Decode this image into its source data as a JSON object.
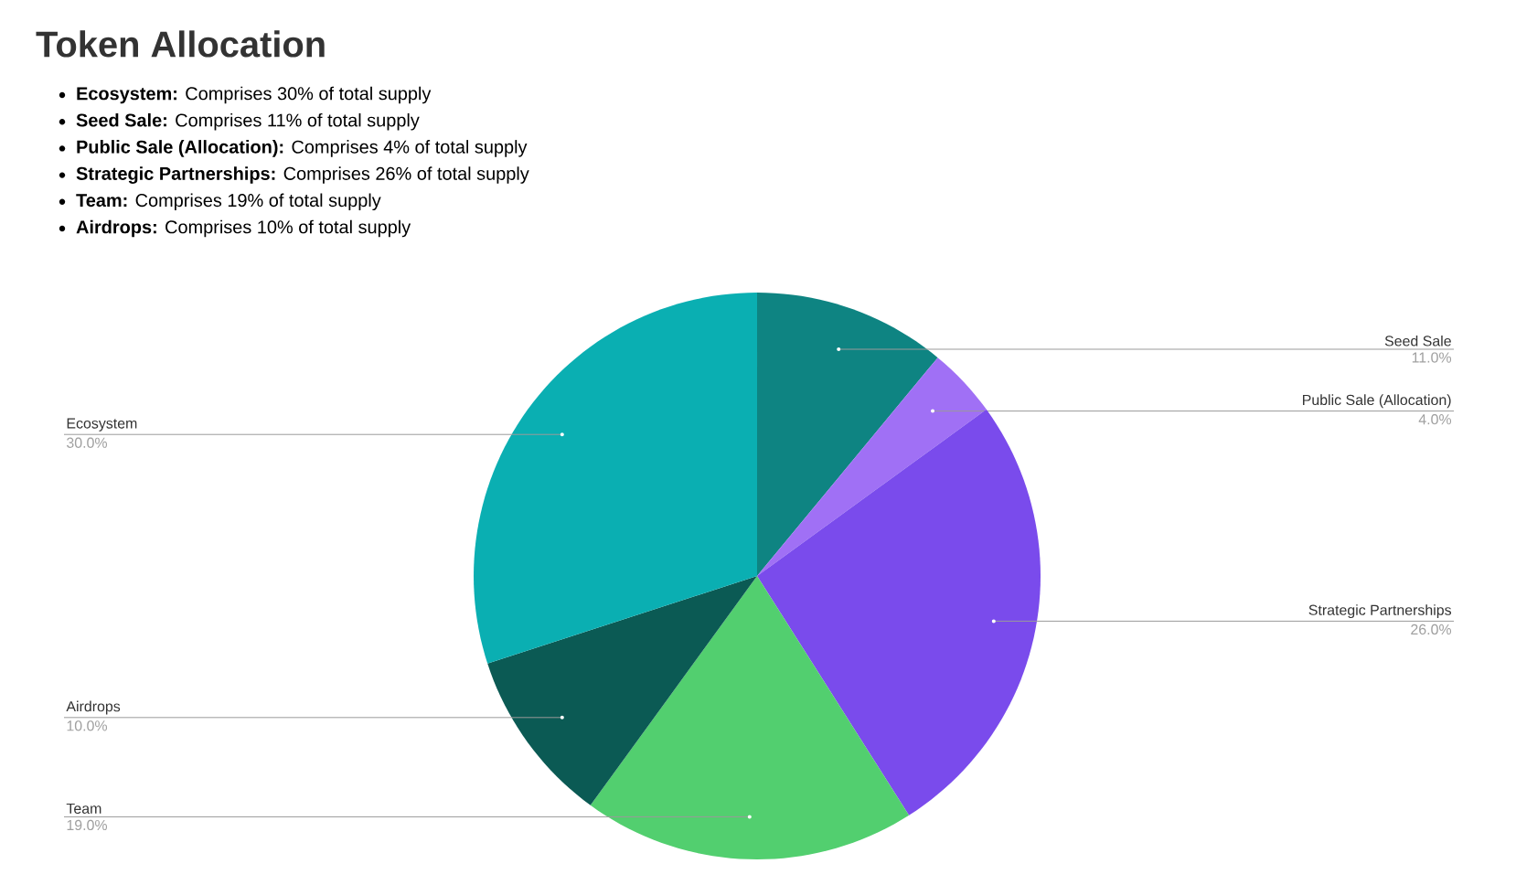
{
  "chart_data": {
    "type": "pie",
    "title": "Token Allocation",
    "annotations": [
      "**Ecosystem:** Comprises 30% of total supply",
      "**Seed Sale:** Comprises 11% of total supply",
      "**Public Sale (Allocation):** Comprises 4% of total supply",
      "**Strategic Partnerships:** Comprises 26% of total supply",
      "**Team:** Comprises 19% of total supply",
      "**Airdrops:** Comprises 10% of total supply"
    ],
    "categories": [
      "Seed Sale",
      "Public Sale (Allocation)",
      "Strategic Partnerships",
      "Team",
      "Airdrops",
      "Ecosystem"
    ],
    "values": [
      11,
      4,
      26,
      19,
      10,
      30
    ],
    "colors": [
      "#0e8482",
      "#a070f5",
      "#7a4bec",
      "#52cf6f",
      "#0b5a54",
      "#0aafb2"
    ],
    "value_labels": [
      "11.0%",
      "4.0%",
      "26.0%",
      "19.0%",
      "10.0%",
      "30.0%"
    ]
  }
}
